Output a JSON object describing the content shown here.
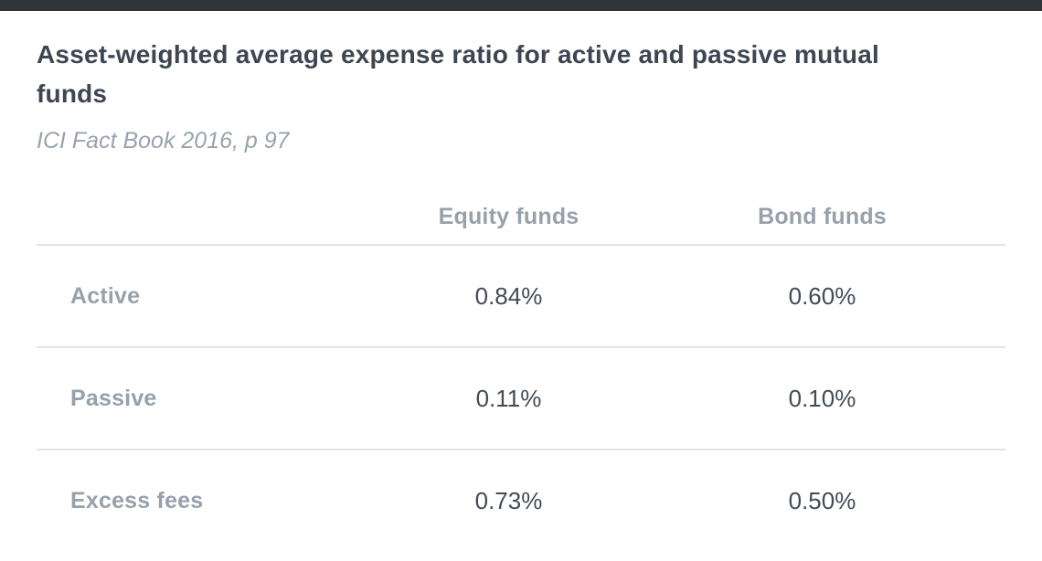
{
  "page": {
    "title": "Asset-weighted average expense ratio for active and passive mutual funds",
    "subtitle": "ICI Fact Book 2016, p 97"
  },
  "table": {
    "columns": {
      "corner": "",
      "equity": "Equity funds",
      "bond": "Bond funds"
    },
    "rows": [
      {
        "label": "Active",
        "equity": "0.84%",
        "bond": "0.60%"
      },
      {
        "label": "Passive",
        "equity": "0.11%",
        "bond": "0.10%"
      },
      {
        "label": "Excess fees",
        "equity": "0.73%",
        "bond": "0.50%"
      }
    ]
  },
  "chart_data": {
    "type": "table",
    "title": "Asset-weighted average expense ratio for active and passive mutual funds",
    "subtitle": "ICI Fact Book 2016, p 97",
    "columns": [
      "Equity funds",
      "Bond funds"
    ],
    "row_labels": [
      "Active",
      "Passive",
      "Excess fees"
    ],
    "values_percent": {
      "Active": {
        "Equity funds": 0.84,
        "Bond funds": 0.6
      },
      "Passive": {
        "Equity funds": 0.11,
        "Bond funds": 0.1
      },
      "Excess fees": {
        "Equity funds": 0.73,
        "Bond funds": 0.5
      }
    },
    "unit": "%"
  },
  "colors": {
    "top_bar": "#2f3438",
    "title_text": "#3e4651",
    "muted_text": "#98a2ad",
    "value_text": "#424b56",
    "divider": "#e3e3e3",
    "background": "#ffffff"
  }
}
